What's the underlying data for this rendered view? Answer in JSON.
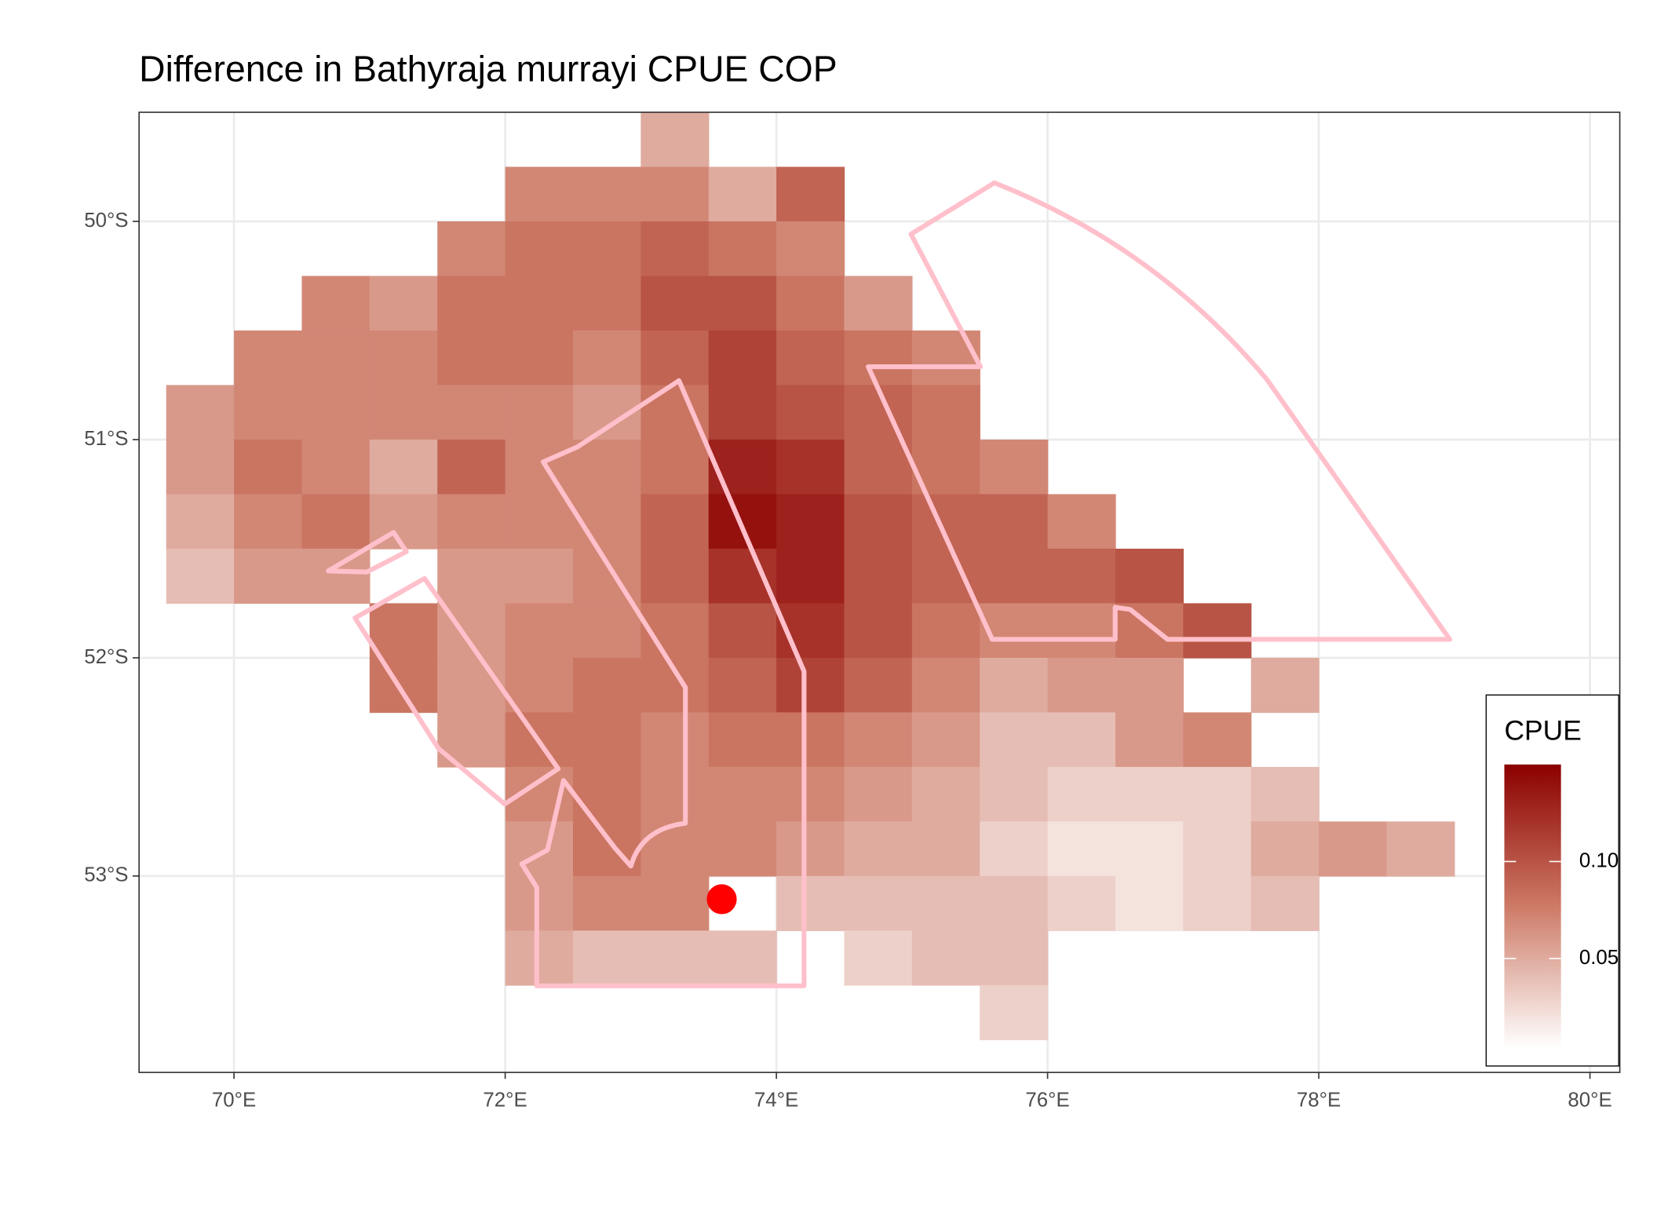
{
  "chart_data": {
    "type": "heatmap",
    "title": "Difference in  Bathyraja murrayi CPUE COP",
    "legend_title": "CPUE",
    "x": [
      69.75,
      70.25,
      70.75,
      71.25,
      71.75,
      72.25,
      72.75,
      73.25,
      73.75,
      74.25,
      74.75,
      75.25,
      75.75,
      76.25,
      76.75,
      77.25,
      77.75,
      78.25,
      78.75,
      79.25
    ],
    "y": [
      -49.625,
      -49.875,
      -50.125,
      -50.375,
      -50.625,
      -50.875,
      -51.125,
      -51.375,
      -51.625,
      -51.875,
      -52.125,
      -52.375,
      -52.625,
      -52.875,
      -53.125,
      -53.375,
      -53.625
    ],
    "z": [
      [
        null,
        null,
        null,
        null,
        null,
        null,
        null,
        0.05,
        null,
        null,
        null,
        null,
        null,
        null,
        null,
        null,
        null,
        null,
        null,
        null
      ],
      [
        null,
        null,
        null,
        null,
        null,
        0.07,
        0.07,
        0.07,
        0.05,
        0.09,
        null,
        null,
        null,
        null,
        null,
        null,
        null,
        null,
        null,
        null
      ],
      [
        null,
        null,
        null,
        null,
        0.07,
        0.08,
        0.08,
        0.09,
        0.08,
        0.07,
        null,
        null,
        null,
        null,
        null,
        null,
        null,
        null,
        null,
        null
      ],
      [
        null,
        null,
        0.07,
        0.06,
        0.08,
        0.08,
        0.08,
        0.1,
        0.1,
        0.08,
        0.06,
        null,
        null,
        null,
        null,
        null,
        null,
        null,
        null,
        null
      ],
      [
        null,
        0.07,
        0.07,
        0.07,
        0.08,
        0.08,
        0.07,
        0.09,
        0.11,
        0.09,
        0.08,
        0.07,
        null,
        null,
        null,
        null,
        null,
        null,
        null,
        null
      ],
      [
        0.06,
        0.07,
        0.07,
        0.07,
        0.07,
        0.07,
        0.06,
        0.08,
        0.11,
        0.1,
        0.09,
        0.08,
        null,
        null,
        null,
        null,
        null,
        null,
        null,
        null
      ],
      [
        0.06,
        0.08,
        0.07,
        0.05,
        0.09,
        0.07,
        0.07,
        0.08,
        0.13,
        0.12,
        0.09,
        0.08,
        0.07,
        null,
        null,
        null,
        null,
        null,
        null,
        null
      ],
      [
        0.05,
        0.07,
        0.08,
        0.06,
        0.07,
        0.07,
        0.07,
        0.09,
        0.14,
        0.13,
        0.1,
        0.09,
        0.09,
        0.07,
        null,
        null,
        null,
        null,
        null,
        null
      ],
      [
        0.04,
        0.06,
        0.06,
        null,
        0.06,
        0.06,
        0.07,
        0.09,
        0.12,
        0.13,
        0.1,
        0.09,
        0.09,
        0.09,
        0.1,
        null,
        null,
        null,
        null,
        null
      ],
      [
        null,
        null,
        null,
        0.08,
        0.06,
        0.07,
        0.07,
        0.08,
        0.1,
        0.12,
        0.1,
        0.08,
        0.07,
        0.07,
        0.08,
        0.1,
        null,
        null,
        null,
        null
      ],
      [
        null,
        null,
        null,
        0.08,
        0.06,
        0.07,
        0.08,
        0.08,
        0.09,
        0.11,
        0.09,
        0.07,
        0.05,
        0.06,
        0.06,
        null,
        0.05,
        null,
        null,
        null
      ],
      [
        null,
        null,
        null,
        null,
        0.06,
        0.08,
        0.08,
        0.07,
        0.08,
        0.08,
        0.07,
        0.06,
        0.04,
        0.04,
        0.06,
        0.07,
        null,
        null,
        null,
        null
      ],
      [
        null,
        null,
        null,
        null,
        null,
        0.07,
        0.08,
        0.07,
        0.07,
        0.07,
        0.06,
        0.05,
        0.04,
        0.03,
        0.03,
        0.03,
        0.04,
        null,
        null,
        null
      ],
      [
        null,
        null,
        null,
        null,
        null,
        0.06,
        0.08,
        0.07,
        0.07,
        0.06,
        0.05,
        0.05,
        0.03,
        0.02,
        0.02,
        0.03,
        0.05,
        0.06,
        0.05,
        null
      ],
      [
        null,
        null,
        null,
        null,
        null,
        0.06,
        0.07,
        0.07,
        null,
        0.04,
        0.04,
        0.04,
        0.04,
        0.03,
        0.02,
        0.03,
        0.04,
        null,
        null,
        null
      ],
      [
        null,
        null,
        null,
        null,
        null,
        0.05,
        0.04,
        0.04,
        0.04,
        null,
        0.03,
        0.04,
        0.04,
        null,
        null,
        null,
        null,
        null,
        null,
        null
      ],
      [
        null,
        null,
        null,
        null,
        null,
        null,
        null,
        null,
        null,
        null,
        null,
        null,
        0.03,
        null,
        null,
        null,
        null,
        null,
        null,
        null
      ]
    ],
    "colors": [
      "#ffffff",
      "#cd7a66",
      "#8b0000"
    ],
    "clim": [
      0.004,
      0.15
    ],
    "cticks": [
      0.05,
      {
        "value": 0.1,
        "label": "0.10"
      }
    ],
    "xlim": [
      69.3,
      80.22
    ],
    "ylim": [
      -53.9,
      -49.5
    ],
    "xticks": [
      {
        "value": 70,
        "label": "70°E"
      },
      {
        "value": 72,
        "label": "72°E"
      },
      {
        "value": 74,
        "label": "74°E"
      },
      {
        "value": 76,
        "label": "76°E"
      },
      {
        "value": 78,
        "label": "78°E"
      },
      {
        "value": 80,
        "label": "80°E"
      }
    ],
    "yticks": [
      {
        "value": -50,
        "label": "50°S"
      },
      {
        "value": -51,
        "label": "51°S"
      },
      {
        "value": -52,
        "label": "52°S"
      },
      {
        "value": -53,
        "label": "53°S"
      }
    ],
    "grid": true
  }
}
